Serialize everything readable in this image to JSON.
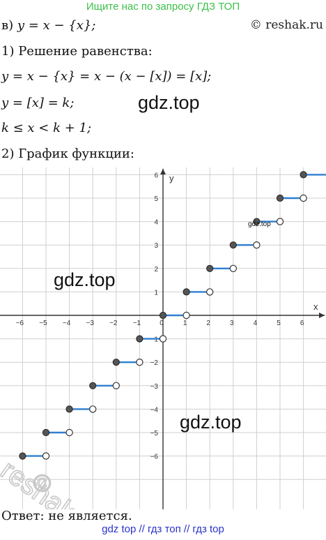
{
  "header": {
    "banner": "Ищите нас по запросу ГДЗ ТОП",
    "site": "© reshak.ru"
  },
  "solution": {
    "part_label": "в)",
    "line1": "y = x − {x};",
    "step1_title": "1) Решение равенства:",
    "eq1": "y = x − {x} = x − (x − [x]) = [x];",
    "eq2": "y = [x] = k;",
    "eq3": "k ≤ x < k + 1;",
    "step2_title": "2) График функции:",
    "answer": "Ответ:  не является."
  },
  "watermarks": {
    "big": "gdz.top",
    "small": "gdz.top",
    "mid_left": "gdz.top",
    "bottom_right": "gdz.top",
    "reshak": "reshak.ru",
    "copyright_glyph": "©"
  },
  "footer": {
    "links": "gdz top  //  гдз топ  //  гдз top"
  },
  "chart_data": {
    "type": "line",
    "title": "",
    "xlabel": "x",
    "ylabel": "y",
    "xlim": [
      -7,
      7
    ],
    "ylim": [
      -7,
      7
    ],
    "x_ticks": [
      "−6",
      "−5",
      "−4",
      "−3",
      "−2",
      "−1",
      "0",
      "1",
      "2",
      "3",
      "4",
      "5",
      "6"
    ],
    "y_ticks": [
      "6",
      "5",
      "4",
      "3",
      "2",
      "1",
      "−1",
      "−2",
      "−3",
      "−4",
      "−5",
      "−6"
    ],
    "grid": true,
    "segments": [
      {
        "k": -6,
        "x_start": -6,
        "x_end": -5
      },
      {
        "k": -5,
        "x_start": -5,
        "x_end": -4
      },
      {
        "k": -4,
        "x_start": -4,
        "x_end": -3
      },
      {
        "k": -3,
        "x_start": -3,
        "x_end": -2
      },
      {
        "k": -2,
        "x_start": -2,
        "x_end": -1
      },
      {
        "k": -1,
        "x_start": -1,
        "x_end": 0
      },
      {
        "k": 0,
        "x_start": 0,
        "x_end": 1
      },
      {
        "k": 1,
        "x_start": 1,
        "x_end": 2
      },
      {
        "k": 2,
        "x_start": 2,
        "x_end": 3
      },
      {
        "k": 3,
        "x_start": 3,
        "x_end": 4
      },
      {
        "k": 4,
        "x_start": 4,
        "x_end": 5
      },
      {
        "k": 5,
        "x_start": 5,
        "x_end": 6
      },
      {
        "k": 6,
        "x_start": 6,
        "x_end": 7
      }
    ],
    "colors": {
      "line": "#2f7fd0",
      "closed_point": "#555555",
      "open_point": "#ffffff",
      "grid": "#cfcfcf",
      "axis": "#333333"
    }
  }
}
